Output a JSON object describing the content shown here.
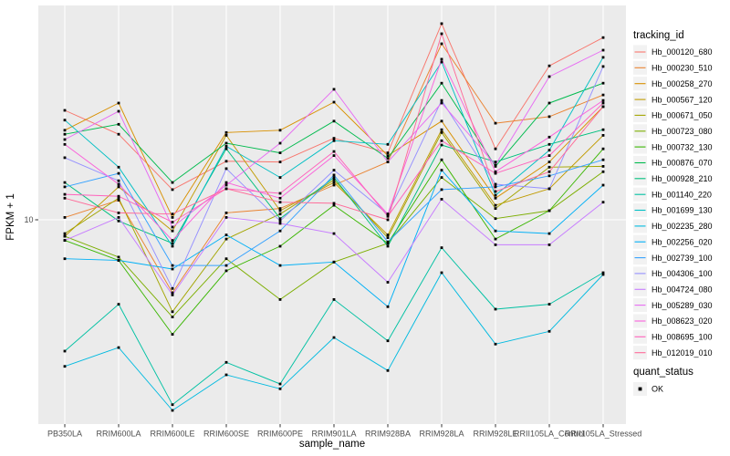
{
  "page": {
    "background": "#FFFFFF"
  },
  "panel": {
    "bg": "#EBEBEB",
    "grid": "#FFFFFF",
    "tick": "#333333",
    "tick_label_color": "#4D4D4D",
    "axis_title_color": "#000000",
    "legend_key_bg": "#F2F2F2",
    "marker_color": "#000000"
  },
  "chart_data": {
    "type": "line",
    "title": "",
    "xlabel": "sample_name",
    "ylabel": "FPKM + 1",
    "y_scale": "log10",
    "y_gridlines": [
      {
        "value": 10,
        "label": "10"
      }
    ],
    "legend": {
      "series_title": "tracking_id",
      "status_title": "quant_status",
      "status_label": "OK",
      "position": "right"
    },
    "marker": {
      "shape": "square",
      "color": "#000000"
    },
    "categories": [
      "PB350LA",
      "RRIM600LA",
      "RRIM600LE",
      "RRIM600SE",
      "RRIM600PE",
      "RRIM901LA",
      "RRIM928BA",
      "RRIM928LA",
      "RRIM928LE",
      "RRII105LA_Control",
      "RRII105LA_Stressed"
    ],
    "series": [
      {
        "name": "Hb_000120_680",
        "color": "#F8766D",
        "values": [
          25.2,
          20.6,
          12.9,
          16.4,
          16.3,
          19.9,
          17.6,
          52.4,
          18.2,
          36.7,
          46.6
        ]
      },
      {
        "name": "Hb_000230_510",
        "color": "#EA8331",
        "values": [
          10.2,
          11.8,
          5.4,
          10.6,
          11.0,
          13.4,
          16.3,
          44.2,
          22.6,
          23.9,
          28.7
        ]
      },
      {
        "name": "Hb_000258_270",
        "color": "#D89000",
        "values": [
          21.3,
          26.8,
          10.2,
          20.9,
          21.3,
          27.0,
          17.2,
          23.0,
          12.0,
          16.3,
          26.0
        ]
      },
      {
        "name": "Hb_000567_120",
        "color": "#C09B00",
        "values": [
          8.7,
          13.2,
          9.1,
          20.4,
          10.8,
          13.7,
          8.8,
          21.4,
          11.3,
          13.0,
          20.4
        ]
      },
      {
        "name": "Hb_000671_050",
        "color": "#A3A500",
        "values": [
          8.9,
          12.0,
          4.6,
          8.5,
          10.5,
          14.0,
          8.6,
          20.9,
          11.0,
          15.6,
          15.7
        ]
      },
      {
        "name": "Hb_000723_080",
        "color": "#7CAE00",
        "values": [
          8.7,
          7.3,
          4.4,
          7.2,
          5.1,
          7.0,
          8.2,
          14.3,
          10.1,
          10.8,
          15.0
        ]
      },
      {
        "name": "Hb_000732_130",
        "color": "#39B600",
        "values": [
          8.4,
          7.1,
          3.8,
          6.5,
          8.0,
          11.3,
          8.2,
          16.6,
          8.5,
          10.8,
          18.2
        ]
      },
      {
        "name": "Hb_000876_070",
        "color": "#00BB4E",
        "values": [
          20.6,
          22.4,
          13.7,
          19.1,
          17.6,
          23.0,
          16.8,
          31.7,
          15.7,
          26.8,
          31.7
        ]
      },
      {
        "name": "Hb_000928_210",
        "color": "#00BF7D",
        "values": [
          13.7,
          9.9,
          8.2,
          18.2,
          10.1,
          14.3,
          8.0,
          18.8,
          16.3,
          18.9,
          21.4
        ]
      },
      {
        "name": "Hb_001140_220",
        "color": "#00C1A3",
        "values": [
          3.3,
          4.9,
          2.1,
          3.0,
          2.5,
          5.1,
          3.6,
          7.9,
          4.7,
          4.9,
          6.4
        ]
      },
      {
        "name": "Hb_001699_130",
        "color": "#00BFC4",
        "values": [
          23.2,
          15.6,
          8.0,
          18.6,
          14.3,
          19.5,
          18.9,
          37.9,
          12.3,
          18.0,
          39.4
        ]
      },
      {
        "name": "Hb_002235_280",
        "color": "#00BAE0",
        "values": [
          2.9,
          3.4,
          2.0,
          2.7,
          2.4,
          3.7,
          2.8,
          6.4,
          3.5,
          3.9,
          6.3
        ]
      },
      {
        "name": "Hb_002256_020",
        "color": "#00B0F6",
        "values": [
          7.2,
          7.1,
          6.6,
          8.8,
          6.8,
          7.0,
          4.8,
          15.2,
          9.1,
          8.9,
          13.4
        ]
      },
      {
        "name": "Hb_002739_100",
        "color": "#35A2FF",
        "values": [
          13.2,
          14.8,
          6.8,
          6.8,
          9.1,
          14.6,
          8.3,
          12.9,
          13.2,
          14.5,
          16.6
        ]
      },
      {
        "name": "Hb_004306_100",
        "color": "#9590FF",
        "values": [
          16.9,
          13.9,
          5.6,
          15.4,
          9.9,
          15.2,
          10.5,
          27.4,
          13.5,
          13.0,
          36.5
        ]
      },
      {
        "name": "Hb_004724_080",
        "color": "#C77CFF",
        "values": [
          8.4,
          10.2,
          5.3,
          10.2,
          9.7,
          8.9,
          5.9,
          11.9,
          8.1,
          8.1,
          11.6
        ]
      },
      {
        "name": "Hb_005289_030",
        "color": "#E76BF3",
        "values": [
          19.7,
          25.0,
          9.4,
          13.4,
          19.1,
          30.1,
          16.3,
          26.8,
          15.9,
          33.5,
          41.9
        ]
      },
      {
        "name": "Hb_008623_020",
        "color": "#FA62DB",
        "values": [
          18.9,
          13.5,
          8.4,
          13.7,
          12.0,
          17.2,
          10.5,
          38.8,
          15.0,
          20.1,
          27.4
        ]
      },
      {
        "name": "Hb_008695_100",
        "color": "#FF62BC",
        "values": [
          12.4,
          12.2,
          9.8,
          13.0,
          12.5,
          17.8,
          10.3,
          19.5,
          14.8,
          17.2,
          26.8
        ]
      },
      {
        "name": "Hb_012019_010",
        "color": "#FF6A98",
        "values": [
          12.0,
          10.6,
          10.5,
          13.0,
          11.6,
          11.5,
          10.0,
          48.1,
          12.7,
          15.0,
          26.0
        ]
      }
    ]
  }
}
